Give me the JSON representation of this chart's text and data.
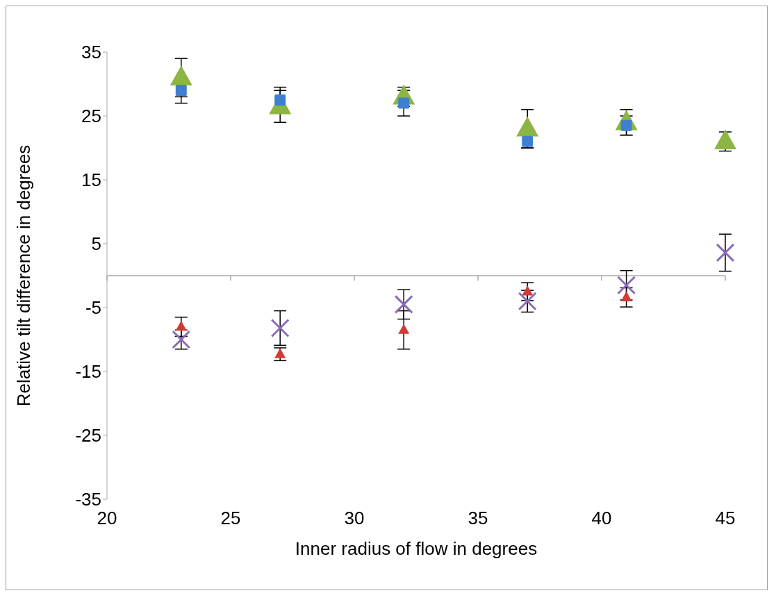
{
  "chart_data": {
    "type": "scatter",
    "xlabel": "Inner radius of flow in degrees",
    "ylabel": "Relative tilt difference in degrees",
    "x": [
      23,
      27,
      32,
      37,
      41,
      45
    ],
    "series": [
      {
        "color": "#8db543",
        "marker": "triangle",
        "values": [
          31,
          26.5,
          28,
          23,
          24,
          21
        ],
        "errors": [
          3,
          2.5,
          1.5,
          3,
          2,
          1.5
        ]
      },
      {
        "color": "#3f7fcf",
        "marker": "square",
        "values": [
          29,
          27.5,
          27,
          21,
          23.5,
          null
        ],
        "errors": [
          2,
          2,
          2,
          1,
          1.5,
          null
        ]
      },
      {
        "color": "#d13b35",
        "marker": "triangle",
        "values": [
          -8,
          -12.3,
          -8.5,
          -2.5,
          -3.4,
          null
        ],
        "errors": [
          1.5,
          1,
          3,
          1.4,
          1.5,
          null
        ]
      },
      {
        "color": "#8c6bb8",
        "marker": "cross",
        "values": [
          -10,
          -8.2,
          -4.5,
          -4,
          -1.5,
          3.6
        ],
        "errors": [
          1.5,
          2.7,
          2.3,
          1.7,
          2.3,
          2.9
        ]
      }
    ],
    "xlim": [
      20,
      45
    ],
    "xticks": [
      20,
      25,
      30,
      35,
      40,
      45
    ],
    "ylim": [
      -35,
      35
    ],
    "yticks": [
      -35,
      -25,
      -15,
      -5,
      5,
      15,
      25,
      35
    ],
    "grid": false
  }
}
